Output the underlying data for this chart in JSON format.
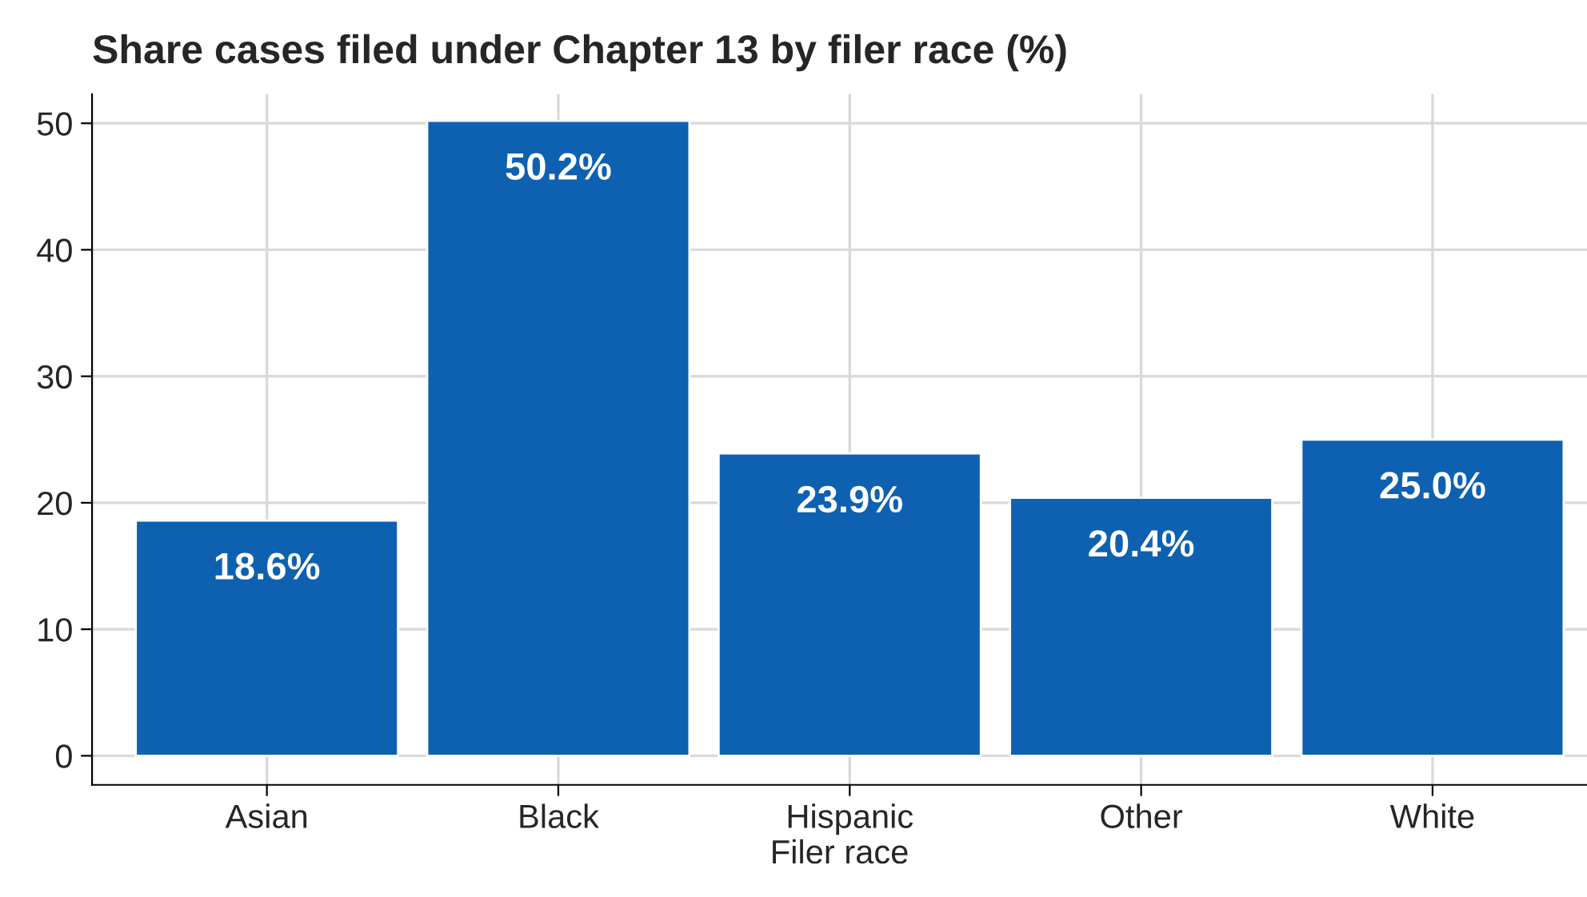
{
  "chart_data": {
    "type": "bar",
    "title": "Share cases filed under Chapter 13 by filer race (%)",
    "xlabel": "Filer race",
    "categories": [
      "Asian",
      "Black",
      "Hispanic",
      "Other",
      "White"
    ],
    "values": [
      18.6,
      50.2,
      23.9,
      20.4,
      25.0
    ],
    "value_labels": [
      "18.6%",
      "50.2%",
      "23.9%",
      "20.4%",
      "25.0%"
    ],
    "color": "#0e61b0",
    "ylim": [
      -2.3,
      52.3
    ],
    "yticks": [
      0,
      10,
      20,
      30,
      40,
      50
    ],
    "grid": true,
    "legend": false
  }
}
